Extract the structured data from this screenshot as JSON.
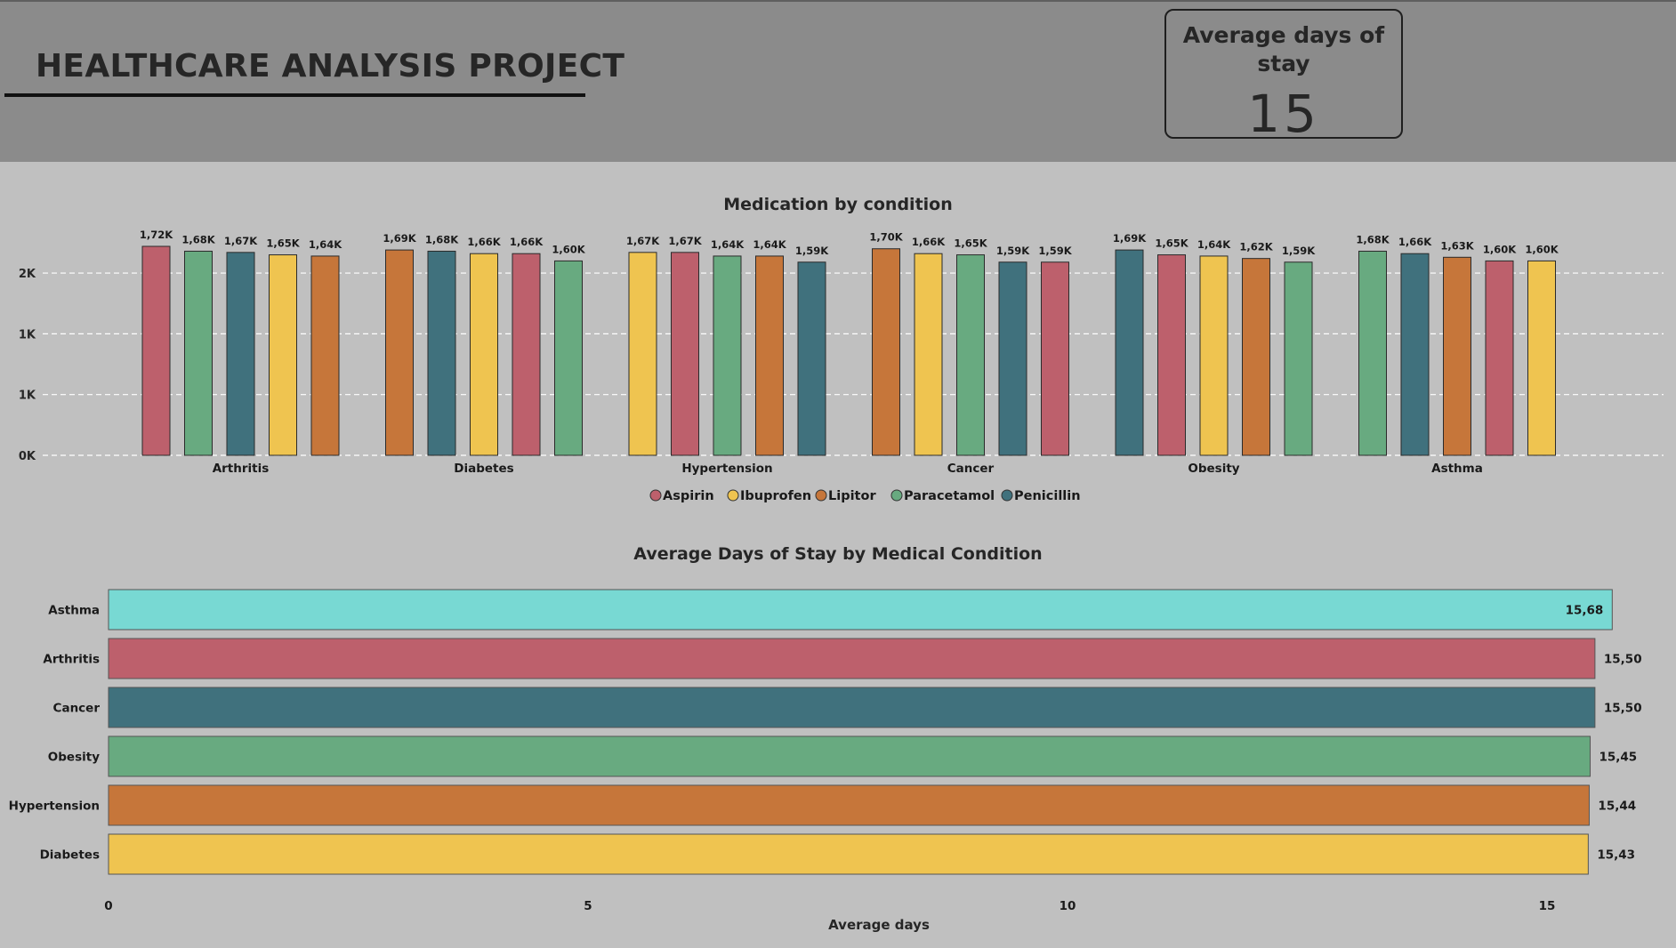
{
  "header": {
    "title": "HEALTHCARE ANALYSIS PROJECT"
  },
  "kpi": {
    "label": "Average days of stay",
    "value": "15"
  },
  "colors": {
    "Aspirin": "#bd606c",
    "Ibuprofen": "#efc450",
    "Lipitor": "#c6763a",
    "Paracetamol": "#68aa80",
    "Penicillin": "#40717d",
    "Asthma": "#78d9d3",
    "header_bg": "#8b8b8b",
    "page_bg": "#c0c0c0"
  },
  "chart_data": [
    {
      "type": "bar",
      "title": "Medication by condition",
      "categories": [
        "Arthritis",
        "Diabetes",
        "Hypertension",
        "Cancer",
        "Obesity",
        "Asthma"
      ],
      "legend": [
        "Aspirin",
        "Ibuprofen",
        "Lipitor",
        "Paracetamol",
        "Penicillin"
      ],
      "legend_position": "bottom-center",
      "y_ticks": [
        "0K",
        "1K",
        "1K",
        "2K"
      ],
      "y_tick_values": [
        0,
        500,
        1000,
        1500
      ],
      "ylim": [
        0,
        1720
      ],
      "grid": true,
      "groups": [
        {
          "category": "Arthritis",
          "bars": [
            {
              "series": "Aspirin",
              "value": 1720,
              "label": "1,72K"
            },
            {
              "series": "Paracetamol",
              "value": 1680,
              "label": "1,68K"
            },
            {
              "series": "Penicillin",
              "value": 1670,
              "label": "1,67K"
            },
            {
              "series": "Ibuprofen",
              "value": 1650,
              "label": "1,65K"
            },
            {
              "series": "Lipitor",
              "value": 1640,
              "label": "1,64K"
            }
          ]
        },
        {
          "category": "Diabetes",
          "bars": [
            {
              "series": "Lipitor",
              "value": 1690,
              "label": "1,69K"
            },
            {
              "series": "Penicillin",
              "value": 1680,
              "label": "1,68K"
            },
            {
              "series": "Ibuprofen",
              "value": 1660,
              "label": "1,66K"
            },
            {
              "series": "Aspirin",
              "value": 1660,
              "label": "1,66K"
            },
            {
              "series": "Paracetamol",
              "value": 1600,
              "label": "1,60K"
            }
          ]
        },
        {
          "category": "Hypertension",
          "bars": [
            {
              "series": "Ibuprofen",
              "value": 1670,
              "label": "1,67K"
            },
            {
              "series": "Aspirin",
              "value": 1670,
              "label": "1,67K"
            },
            {
              "series": "Paracetamol",
              "value": 1640,
              "label": "1,64K"
            },
            {
              "series": "Lipitor",
              "value": 1640,
              "label": "1,64K"
            },
            {
              "series": "Penicillin",
              "value": 1590,
              "label": "1,59K"
            }
          ]
        },
        {
          "category": "Cancer",
          "bars": [
            {
              "series": "Lipitor",
              "value": 1700,
              "label": "1,70K"
            },
            {
              "series": "Ibuprofen",
              "value": 1660,
              "label": "1,66K"
            },
            {
              "series": "Paracetamol",
              "value": 1650,
              "label": "1,65K"
            },
            {
              "series": "Penicillin",
              "value": 1590,
              "label": "1,59K"
            },
            {
              "series": "Aspirin",
              "value": 1590,
              "label": "1,59K"
            }
          ]
        },
        {
          "category": "Obesity",
          "bars": [
            {
              "series": "Penicillin",
              "value": 1690,
              "label": "1,69K"
            },
            {
              "series": "Aspirin",
              "value": 1650,
              "label": "1,65K"
            },
            {
              "series": "Ibuprofen",
              "value": 1640,
              "label": "1,64K"
            },
            {
              "series": "Lipitor",
              "value": 1620,
              "label": "1,62K"
            },
            {
              "series": "Paracetamol",
              "value": 1590,
              "label": "1,59K"
            }
          ]
        },
        {
          "category": "Asthma",
          "bars": [
            {
              "series": "Paracetamol",
              "value": 1680,
              "label": "1,68K"
            },
            {
              "series": "Penicillin",
              "value": 1660,
              "label": "1,66K"
            },
            {
              "series": "Lipitor",
              "value": 1630,
              "label": "1,63K"
            },
            {
              "series": "Aspirin",
              "value": 1600,
              "label": "1,60K"
            },
            {
              "series": "Ibuprofen",
              "value": 1600,
              "label": "1,60K"
            }
          ]
        }
      ]
    },
    {
      "type": "bar",
      "orientation": "horizontal",
      "title": "Average Days of Stay by Medical Condition",
      "xlabel": "Average days",
      "ylabel": "",
      "x_ticks": [
        0,
        5,
        10,
        15
      ],
      "xlim": [
        0,
        15.68
      ],
      "categories": [
        "Asthma",
        "Arthritis",
        "Cancer",
        "Obesity",
        "Hypertension",
        "Diabetes"
      ],
      "values": [
        15.68,
        15.5,
        15.5,
        15.45,
        15.44,
        15.43
      ],
      "value_labels": [
        "15,68",
        "15,50",
        "15,50",
        "15,45",
        "15,44",
        "15,43"
      ],
      "bar_colors": [
        "#78d9d3",
        "#bd606c",
        "#40717d",
        "#68aa80",
        "#c6763a",
        "#efc450"
      ]
    }
  ]
}
